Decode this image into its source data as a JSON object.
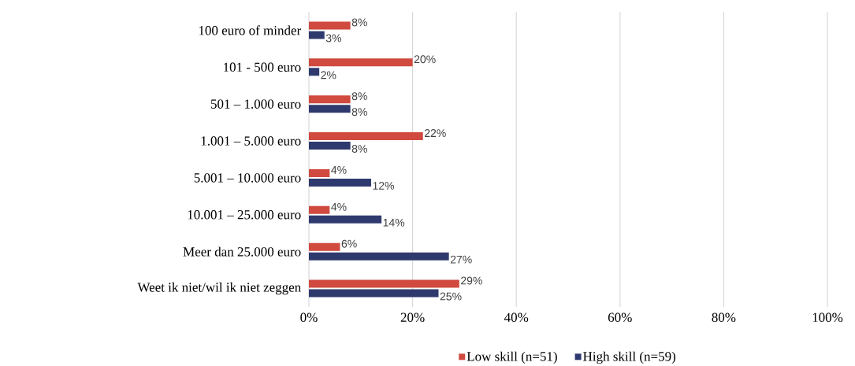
{
  "chart_data": {
    "type": "bar",
    "orientation": "horizontal",
    "categories": [
      "100 euro of minder",
      "101 - 500 euro",
      "501 – 1.000 euro",
      "1.001 – 5.000 euro",
      "5.001 – 10.000 euro",
      "10.001 – 25.000 euro",
      "Meer dan 25.000 euro",
      "Weet ik niet/wil ik niet zeggen"
    ],
    "series": [
      {
        "name": "Low skill (n=51)",
        "color": "#d04a3f",
        "values": [
          8,
          20,
          8,
          22,
          4,
          4,
          6,
          29
        ],
        "value_labels": [
          "8%",
          "20%",
          "8%",
          "22%",
          "4%",
          "4%",
          "6%",
          "29%"
        ]
      },
      {
        "name": "High skill (n=59)",
        "color": "#2e3a6e",
        "values": [
          3,
          2,
          8,
          8,
          12,
          14,
          27,
          25
        ],
        "value_labels": [
          "3%",
          "2%",
          "8%",
          "8%",
          "12%",
          "14%",
          "27%",
          "25%"
        ]
      }
    ],
    "xlim": [
      0,
      100
    ],
    "xticks": [
      {
        "value": 0,
        "label": "0%"
      },
      {
        "value": 20,
        "label": "20%"
      },
      {
        "value": 40,
        "label": "40%"
      },
      {
        "value": 60,
        "label": "60%"
      },
      {
        "value": 80,
        "label": "80%"
      },
      {
        "value": 100,
        "label": "100%"
      }
    ],
    "grid": "x",
    "legend": "bottom"
  }
}
